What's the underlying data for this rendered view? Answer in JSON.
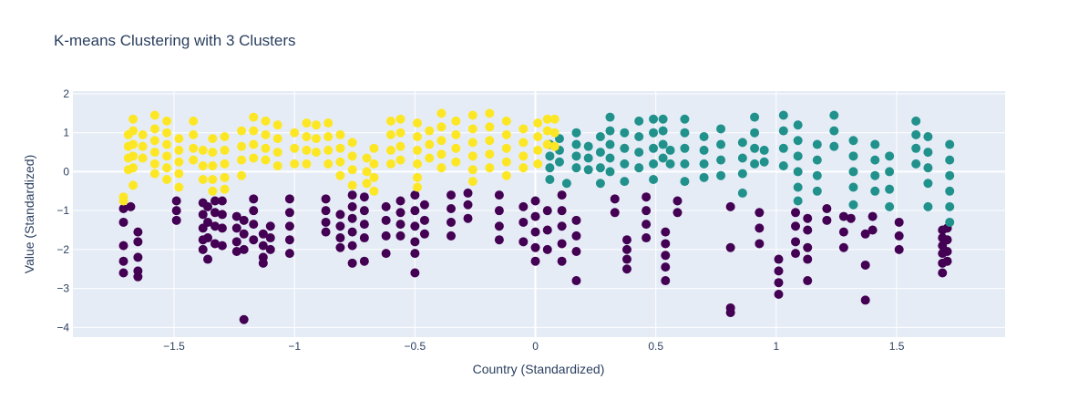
{
  "chart_data": {
    "type": "scatter",
    "title": "K-means Clustering with 3 Clusters",
    "xlabel": "Country (Standardized)",
    "ylabel": "Value (Standardized)",
    "xlim": [
      -1.92,
      1.95
    ],
    "ylim": [
      -4.25,
      2.07
    ],
    "x_ticks": [
      -1.5,
      -1,
      -0.5,
      0,
      0.5,
      1,
      1.5
    ],
    "x_tick_labels": [
      "−1.5",
      "−1",
      "−0.5",
      "0",
      "0.5",
      "1",
      "1.5"
    ],
    "y_ticks": [
      -4,
      -3,
      -2,
      -1,
      0,
      1,
      2
    ],
    "y_tick_labels": [
      "−4",
      "−3",
      "−2",
      "−1",
      "0",
      "1",
      "2"
    ],
    "grid": true,
    "legend": "none",
    "series": [
      {
        "color": "#440154",
        "columns": [
          {
            "x": -1.71,
            "y": [
              -0.95,
              -1.3,
              -1.9,
              -2.3,
              -2.6
            ]
          },
          {
            "x": -1.68,
            "y": [
              -0.9
            ]
          },
          {
            "x": -1.65,
            "y": [
              -1.55,
              -1.8,
              -2.2,
              -2.55,
              -2.7
            ]
          },
          {
            "x": -1.49,
            "y": [
              -0.75,
              -1.0,
              -1.25
            ]
          },
          {
            "x": -1.38,
            "y": [
              -0.8,
              -1.1,
              -1.45,
              -1.75,
              -2.0
            ]
          },
          {
            "x": -1.36,
            "y": [
              -0.9,
              -1.3,
              -1.7,
              -2.25
            ]
          },
          {
            "x": -1.33,
            "y": [
              -0.75,
              -1.05,
              -1.4,
              -1.85
            ]
          },
          {
            "x": -1.3,
            "y": [
              -0.75,
              -1.1,
              -1.45,
              -1.9
            ]
          },
          {
            "x": -1.24,
            "y": [
              -1.15,
              -1.45,
              -1.8,
              -2.05
            ]
          },
          {
            "x": -1.21,
            "y": [
              -1.25,
              -1.6,
              -2.0,
              -3.8
            ]
          },
          {
            "x": -1.17,
            "y": [
              -0.7,
              -1.0,
              -1.35,
              -1.75
            ]
          },
          {
            "x": -1.13,
            "y": [
              -1.6,
              -1.9,
              -2.2,
              -2.35
            ]
          },
          {
            "x": -1.1,
            "y": [
              -1.4,
              -1.7,
              -2.0
            ]
          },
          {
            "x": -1.02,
            "y": [
              -0.7,
              -1.05,
              -1.4,
              -1.75,
              -2.1
            ]
          },
          {
            "x": -0.87,
            "y": [
              -0.7,
              -1.0,
              -1.3,
              -1.55
            ]
          },
          {
            "x": -0.81,
            "y": [
              -1.1,
              -1.4,
              -1.7,
              -1.95
            ]
          },
          {
            "x": -0.76,
            "y": [
              -0.6,
              -0.9,
              -1.2,
              -1.55,
              -1.9,
              -2.35
            ]
          },
          {
            "x": -0.71,
            "y": [
              -0.65,
              -1.0,
              -1.35,
              -1.7,
              -2.3
            ]
          },
          {
            "x": -0.62,
            "y": [
              -0.9,
              -1.25,
              -1.65,
              -2.1
            ]
          },
          {
            "x": -0.56,
            "y": [
              -0.75,
              -1.05,
              -1.35,
              -1.65
            ]
          },
          {
            "x": -0.5,
            "y": [
              -0.6,
              -1.0,
              -1.4,
              -1.8,
              -2.1,
              -2.6
            ]
          },
          {
            "x": -0.46,
            "y": [
              -0.85,
              -1.25,
              -1.6
            ]
          },
          {
            "x": -0.35,
            "y": [
              -0.6,
              -0.95,
              -1.3,
              -1.65
            ]
          },
          {
            "x": -0.28,
            "y": [
              -0.55,
              -0.85,
              -1.2
            ]
          },
          {
            "x": -0.15,
            "y": [
              -0.6,
              -1.0,
              -1.4,
              -1.75
            ]
          },
          {
            "x": -0.05,
            "y": [
              -0.9,
              -1.3,
              -1.8
            ]
          },
          {
            "x": 0.0,
            "y": [
              -0.75,
              -1.15,
              -1.55,
              -1.95,
              -2.3
            ]
          },
          {
            "x": 0.05,
            "y": [
              -1.0,
              -1.5,
              -2.0
            ]
          },
          {
            "x": 0.11,
            "y": [
              -0.6,
              -1.0,
              -1.4,
              -1.85,
              -2.3
            ]
          },
          {
            "x": 0.17,
            "y": [
              -1.25,
              -1.65,
              -2.05,
              -2.8
            ]
          },
          {
            "x": 0.33,
            "y": [
              -0.7,
              -1.05
            ]
          },
          {
            "x": 0.38,
            "y": [
              -1.75,
              -2.0,
              -2.25,
              -2.5
            ]
          },
          {
            "x": 0.46,
            "y": [
              -0.65,
              -1.0,
              -1.35,
              -1.7
            ]
          },
          {
            "x": 0.54,
            "y": [
              -1.55,
              -1.85,
              -2.15,
              -2.45,
              -2.8
            ]
          },
          {
            "x": 0.59,
            "y": [
              -0.75,
              -1.05
            ]
          },
          {
            "x": 0.81,
            "y": [
              -0.9,
              -1.95,
              -3.5,
              -3.62
            ]
          },
          {
            "x": 0.93,
            "y": [
              -1.05,
              -1.45,
              -1.85
            ]
          },
          {
            "x": 1.01,
            "y": [
              -2.25,
              -2.55,
              -2.85,
              -3.15
            ]
          },
          {
            "x": 1.08,
            "y": [
              -1.05,
              -1.4,
              -1.8,
              -2.1
            ]
          },
          {
            "x": 1.13,
            "y": [
              -1.2,
              -1.5,
              -1.95,
              -2.25,
              -2.8
            ]
          },
          {
            "x": 1.21,
            "y": [
              -0.95,
              -1.25
            ]
          },
          {
            "x": 1.28,
            "y": [
              -1.15,
              -1.55,
              -1.95
            ]
          },
          {
            "x": 1.31,
            "y": [
              -1.2
            ]
          },
          {
            "x": 1.37,
            "y": [
              -1.6,
              -2.4,
              -3.3
            ]
          },
          {
            "x": 1.4,
            "y": [
              -1.15,
              -1.5
            ]
          },
          {
            "x": 1.51,
            "y": [
              -1.3,
              -1.65,
              -2.0
            ]
          },
          {
            "x": 1.69,
            "y": [
              -1.5,
              -1.7,
              -1.9,
              -2.1,
              -2.35,
              -2.6
            ]
          },
          {
            "x": 1.71,
            "y": [
              -1.45,
              -1.75,
              -2.05,
              -2.3
            ]
          }
        ]
      },
      {
        "color": "#21918c",
        "columns": [
          {
            "x": 0.06,
            "y": [
              0.7,
              0.4,
              0.1,
              -0.2
            ]
          },
          {
            "x": 0.1,
            "y": [
              0.85,
              0.55,
              0.25
            ]
          },
          {
            "x": 0.13,
            "y": [
              -0.3
            ]
          },
          {
            "x": 0.17,
            "y": [
              1.0,
              0.7,
              0.4,
              0.1
            ]
          },
          {
            "x": 0.22,
            "y": [
              0.65,
              0.35,
              0.05
            ]
          },
          {
            "x": 0.27,
            "y": [
              0.9,
              0.5,
              0.1,
              -0.3
            ]
          },
          {
            "x": 0.31,
            "y": [
              1.4,
              1.05,
              0.7,
              0.35,
              0.0
            ]
          },
          {
            "x": 0.37,
            "y": [
              1.0,
              0.6,
              0.2,
              -0.25
            ]
          },
          {
            "x": 0.43,
            "y": [
              1.3,
              0.9,
              0.5,
              0.1
            ]
          },
          {
            "x": 0.49,
            "y": [
              1.35,
              1.0,
              0.6,
              0.2,
              -0.2
            ]
          },
          {
            "x": 0.53,
            "y": [
              1.35,
              1.05,
              0.7,
              0.35
            ]
          },
          {
            "x": 0.56,
            "y": [
              0.55,
              0.2
            ]
          },
          {
            "x": 0.62,
            "y": [
              1.35,
              1.0,
              0.6,
              0.2,
              -0.25
            ]
          },
          {
            "x": 0.7,
            "y": [
              0.9,
              0.55,
              0.2,
              -0.15
            ]
          },
          {
            "x": 0.77,
            "y": [
              1.1,
              0.7,
              0.3,
              -0.1
            ]
          },
          {
            "x": 0.86,
            "y": [
              0.75,
              0.35,
              -0.05,
              -0.55
            ]
          },
          {
            "x": 0.91,
            "y": [
              1.4,
              1.0,
              0.6,
              0.2
            ]
          },
          {
            "x": 0.95,
            "y": [
              0.55,
              0.25
            ]
          },
          {
            "x": 1.03,
            "y": [
              1.45,
              1.05,
              0.6,
              0.15
            ]
          },
          {
            "x": 1.09,
            "y": [
              1.2,
              0.8,
              0.4,
              0.0,
              -0.4,
              -0.75
            ]
          },
          {
            "x": 1.17,
            "y": [
              0.7,
              0.3,
              -0.1,
              -0.5
            ]
          },
          {
            "x": 1.24,
            "y": [
              1.45,
              1.05,
              0.65
            ]
          },
          {
            "x": 1.32,
            "y": [
              0.8,
              0.4,
              0.0,
              -0.4,
              -0.85
            ]
          },
          {
            "x": 1.41,
            "y": [
              0.7,
              0.3,
              -0.1,
              -0.5
            ]
          },
          {
            "x": 1.47,
            "y": [
              0.4,
              0.0,
              -0.45,
              -0.9
            ]
          },
          {
            "x": 1.58,
            "y": [
              1.3,
              0.95,
              0.6,
              0.2
            ]
          },
          {
            "x": 1.63,
            "y": [
              0.9,
              0.5,
              0.1,
              -0.3,
              -0.9
            ]
          },
          {
            "x": 1.72,
            "y": [
              0.7,
              0.3,
              -0.1,
              -0.5,
              -0.9,
              -1.3
            ]
          }
        ]
      },
      {
        "color": "#fde725",
        "columns": [
          {
            "x": -1.71,
            "y": [
              -0.65,
              -0.75
            ]
          },
          {
            "x": -1.69,
            "y": [
              0.95,
              0.65,
              0.35,
              0.05
            ]
          },
          {
            "x": -1.67,
            "y": [
              1.35,
              1.05,
              0.7,
              0.4,
              0.1,
              -0.35
            ]
          },
          {
            "x": -1.63,
            "y": [
              0.95,
              0.65,
              0.35
            ]
          },
          {
            "x": -1.58,
            "y": [
              1.45,
              1.1,
              0.8,
              0.5,
              0.2,
              -0.05
            ]
          },
          {
            "x": -1.53,
            "y": [
              1.3,
              1.0,
              0.7,
              0.4,
              0.1,
              -0.2
            ]
          },
          {
            "x": -1.48,
            "y": [
              0.85,
              0.55,
              0.25,
              -0.05,
              -0.4
            ]
          },
          {
            "x": -1.42,
            "y": [
              1.3,
              0.95,
              0.6,
              0.3
            ]
          },
          {
            "x": -1.38,
            "y": [
              0.55,
              0.15,
              -0.2
            ]
          },
          {
            "x": -1.34,
            "y": [
              0.85,
              0.5,
              0.15,
              -0.2,
              -0.5
            ]
          },
          {
            "x": -1.29,
            "y": [
              0.9,
              0.55,
              0.2,
              -0.15,
              -0.45
            ]
          },
          {
            "x": -1.22,
            "y": [
              1.05,
              0.65,
              0.3,
              -0.1
            ]
          },
          {
            "x": -1.17,
            "y": [
              1.4,
              1.05,
              0.7,
              0.35
            ]
          },
          {
            "x": -1.12,
            "y": [
              1.3,
              0.95,
              0.6,
              0.3
            ]
          },
          {
            "x": -1.07,
            "y": [
              1.2,
              0.85,
              0.5,
              0.15
            ]
          },
          {
            "x": -1.0,
            "y": [
              1.0,
              0.6,
              0.2
            ]
          },
          {
            "x": -0.95,
            "y": [
              1.25,
              0.9,
              0.55,
              0.2
            ]
          },
          {
            "x": -0.91,
            "y": [
              1.2,
              0.85,
              0.5
            ]
          },
          {
            "x": -0.86,
            "y": [
              1.25,
              0.9,
              0.55,
              0.2
            ]
          },
          {
            "x": -0.81,
            "y": [
              0.95,
              0.6,
              0.25,
              -0.1
            ]
          },
          {
            "x": -0.76,
            "y": [
              0.75,
              0.4,
              0.05,
              -0.35
            ]
          },
          {
            "x": -0.7,
            "y": [
              0.35,
              0.0,
              -0.3
            ]
          },
          {
            "x": -0.67,
            "y": [
              0.6,
              0.2,
              -0.15,
              -0.5
            ]
          },
          {
            "x": -0.6,
            "y": [
              1.3,
              0.95,
              0.55,
              0.2
            ]
          },
          {
            "x": -0.56,
            "y": [
              1.35,
              1.0,
              0.65,
              0.3
            ]
          },
          {
            "x": -0.49,
            "y": [
              1.25,
              0.9,
              0.55,
              0.2,
              -0.15,
              -0.4
            ]
          },
          {
            "x": -0.44,
            "y": [
              1.05,
              0.7,
              0.35
            ]
          },
          {
            "x": -0.39,
            "y": [
              1.5,
              1.15,
              0.8,
              0.45,
              0.1
            ]
          },
          {
            "x": -0.33,
            "y": [
              1.3,
              0.95,
              0.6,
              0.25
            ]
          },
          {
            "x": -0.26,
            "y": [
              1.45,
              1.1,
              0.75,
              0.4,
              0.05,
              -0.25
            ]
          },
          {
            "x": -0.19,
            "y": [
              1.5,
              1.15,
              0.8,
              0.45,
              0.1
            ]
          },
          {
            "x": -0.12,
            "y": [
              1.3,
              0.95,
              0.6,
              0.25,
              -0.1
            ]
          },
          {
            "x": -0.05,
            "y": [
              1.1,
              0.75,
              0.4,
              0.1
            ]
          },
          {
            "x": 0.01,
            "y": [
              1.25,
              0.9,
              0.55,
              0.2
            ]
          },
          {
            "x": 0.05,
            "y": [
              1.35,
              1.05,
              0.7
            ]
          },
          {
            "x": 0.08,
            "y": [
              1.35,
              1.0,
              0.65
            ]
          }
        ]
      }
    ]
  }
}
